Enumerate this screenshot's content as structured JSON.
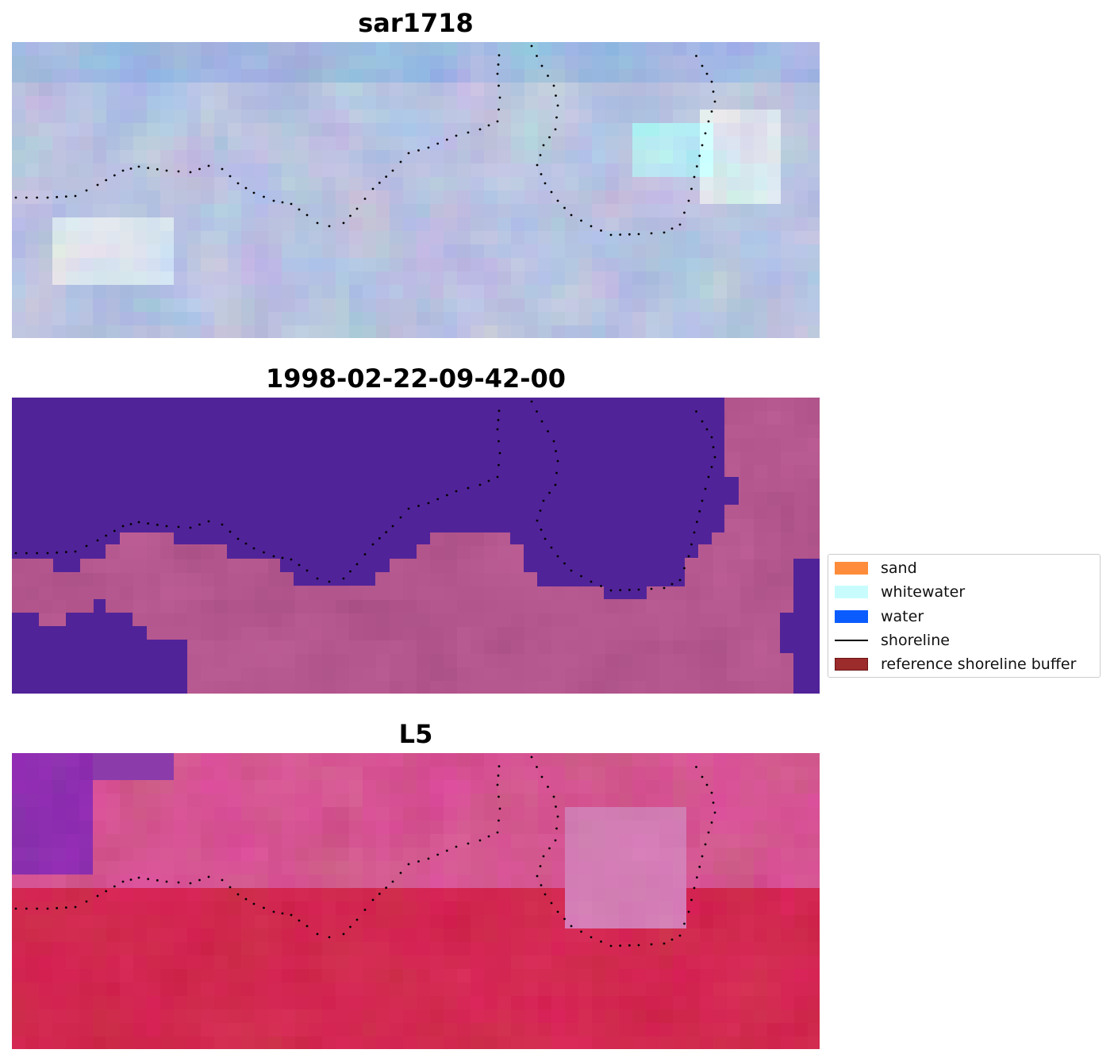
{
  "panels": [
    {
      "title": "sar1718",
      "style": "sar"
    },
    {
      "title": "1998-02-22-09-42-00",
      "style": "class"
    },
    {
      "title": "L5",
      "style": "l5"
    }
  ],
  "legend": [
    {
      "label": "sand",
      "color": "#ff8c3a",
      "kind": "patch"
    },
    {
      "label": "whitewater",
      "color": "#c8fcfc",
      "kind": "patch"
    },
    {
      "label": "water",
      "color": "#0a5cff",
      "kind": "patch"
    },
    {
      "label": "shoreline",
      "color": "#000000",
      "kind": "line"
    },
    {
      "label": "reference shoreline buffer",
      "color": "#9c2b2b",
      "kind": "patch",
      "edge": "#6b1515"
    }
  ],
  "colors": {
    "class_water": "#512398",
    "class_land": "#b35a8e",
    "shoreline_dots": "#000000"
  }
}
